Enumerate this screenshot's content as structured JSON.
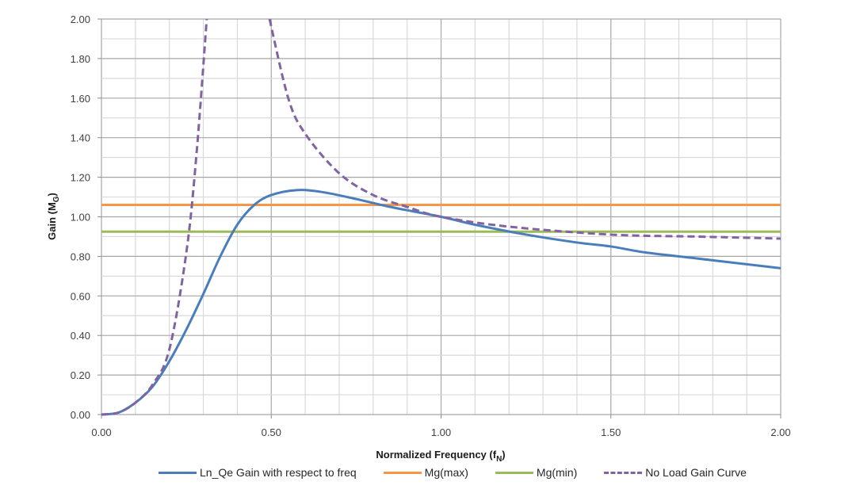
{
  "chart_data": {
    "type": "line",
    "title": "",
    "xlabel": "Normalized Frequency (f_N)",
    "ylabel": "Gain (M_G)",
    "xlim": [
      0,
      2
    ],
    "ylim": [
      0,
      2
    ],
    "xticks": [
      "0.00",
      "0.50",
      "1.00",
      "1.50",
      "2.00"
    ],
    "yticks": [
      "0.00",
      "0.20",
      "0.40",
      "0.60",
      "0.80",
      "1.00",
      "1.20",
      "1.40",
      "1.60",
      "1.80",
      "2.00"
    ],
    "grid": true,
    "legend_position": "bottom",
    "series": [
      {
        "name": "Ln_Qe Gain with respect to freq",
        "color": "#4a7ebb",
        "style": "solid",
        "x": [
          0.0,
          0.05,
          0.1,
          0.15,
          0.2,
          0.25,
          0.3,
          0.35,
          0.4,
          0.45,
          0.5,
          0.575,
          0.65,
          0.75,
          0.85,
          1.0,
          1.1,
          1.25,
          1.4,
          1.5,
          1.6,
          1.75,
          1.9,
          2.0
        ],
        "y": [
          0.0,
          0.01,
          0.06,
          0.14,
          0.27,
          0.43,
          0.61,
          0.8,
          0.96,
          1.06,
          1.11,
          1.135,
          1.125,
          1.09,
          1.05,
          1.0,
          0.96,
          0.91,
          0.87,
          0.85,
          0.82,
          0.79,
          0.76,
          0.74
        ]
      },
      {
        "name": "Mg(max)",
        "color": "#f79646",
        "style": "solid",
        "x": [
          0,
          2
        ],
        "y": [
          1.06,
          1.06
        ]
      },
      {
        "name": "Mg(min)",
        "color": "#9bbb59",
        "style": "solid",
        "x": [
          0,
          2
        ],
        "y": [
          0.925,
          0.925
        ]
      },
      {
        "name": "No Load Gain Curve",
        "color": "#8064a2",
        "style": "dashed",
        "x": [
          0.0,
          0.05,
          0.1,
          0.15,
          0.2,
          0.25,
          0.28,
          0.31,
          0.495,
          0.55,
          0.6,
          0.7,
          0.8,
          0.9,
          1.0,
          1.2,
          1.5,
          1.75,
          2.0
        ],
        "y": [
          0.0,
          0.01,
          0.06,
          0.15,
          0.33,
          0.82,
          1.32,
          2.0,
          2.0,
          1.6,
          1.42,
          1.22,
          1.11,
          1.05,
          1.0,
          0.95,
          0.91,
          0.9,
          0.89
        ]
      }
    ]
  },
  "axes": {
    "x_title_main": "Normalized Frequency (f",
    "x_title_sub": "N",
    "x_title_end": ")",
    "y_title_main": "Gain (M",
    "y_title_sub": "G",
    "y_title_end": ")"
  },
  "legend": [
    {
      "label": "Ln_Qe Gain with respect to freq",
      "color": "#4a7ebb",
      "dashed": false
    },
    {
      "label": "Mg(max)",
      "color": "#f79646",
      "dashed": false
    },
    {
      "label": "Mg(min)",
      "color": "#9bbb59",
      "dashed": false
    },
    {
      "label": "No Load Gain Curve",
      "color": "#8064a2",
      "dashed": true
    }
  ]
}
